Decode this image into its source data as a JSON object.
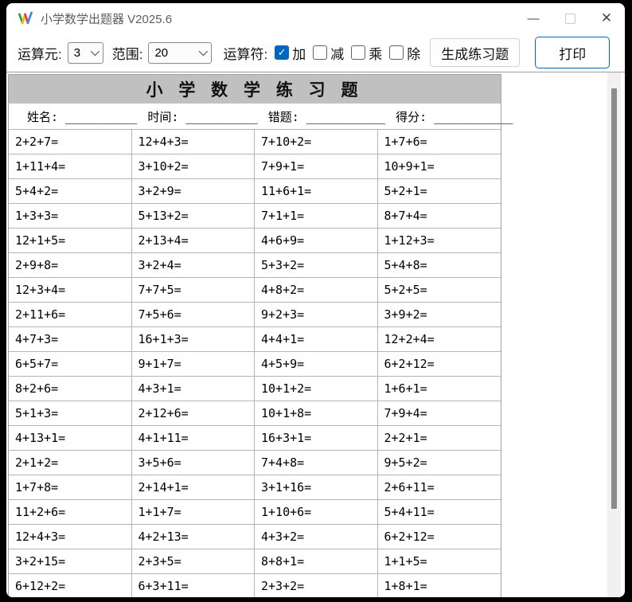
{
  "window": {
    "title": "小学数学出题器 V2025.6",
    "controls": {
      "minimize_glyph": "—",
      "close_glyph": "✕"
    }
  },
  "toolbar": {
    "operand_label": "运算元:",
    "operand_value": "3",
    "range_label": "范围:",
    "range_value": "20",
    "operators_label": "运算符:",
    "operators": [
      {
        "label": "加",
        "checked": true
      },
      {
        "label": "减",
        "checked": false
      },
      {
        "label": "乘",
        "checked": false
      },
      {
        "label": "除",
        "checked": false
      }
    ],
    "generate_button": "生成练习题",
    "print_button": "打印"
  },
  "sheet": {
    "title": "小 学 数 学 练 习 题",
    "fields": [
      {
        "label": "姓名:",
        "blank": " __________"
      },
      {
        "label": "时间:",
        "blank": " __________"
      },
      {
        "label": "错题:",
        "blank": " ___________"
      },
      {
        "label": "得分:",
        "blank": " ___________"
      }
    ]
  },
  "problems": {
    "columns": 4,
    "rows": [
      [
        "2+2+7=",
        "12+4+3=",
        "7+10+2=",
        "1+7+6="
      ],
      [
        "1+11+4=",
        "3+10+2=",
        "7+9+1=",
        "10+9+1="
      ],
      [
        "5+4+2=",
        "3+2+9=",
        "11+6+1=",
        "5+2+1="
      ],
      [
        "1+3+3=",
        "5+13+2=",
        "7+1+1=",
        "8+7+4="
      ],
      [
        "12+1+5=",
        "2+13+4=",
        "4+6+9=",
        "1+12+3="
      ],
      [
        "2+9+8=",
        "3+2+4=",
        "5+3+2=",
        "5+4+8="
      ],
      [
        "12+3+4=",
        "7+7+5=",
        "4+8+2=",
        "5+2+5="
      ],
      [
        "2+11+6=",
        "7+5+6=",
        "9+2+3=",
        "3+9+2="
      ],
      [
        "4+7+3=",
        "16+1+3=",
        "4+4+1=",
        "12+2+4="
      ],
      [
        "6+5+7=",
        "9+1+7=",
        "4+5+9=",
        "6+2+12="
      ],
      [
        "8+2+6=",
        "4+3+1=",
        "10+1+2=",
        "1+6+1="
      ],
      [
        "5+1+3=",
        "2+12+6=",
        "10+1+8=",
        "7+9+4="
      ],
      [
        "4+13+1=",
        "4+1+11=",
        "16+3+1=",
        "2+2+1="
      ],
      [
        "2+1+2=",
        "3+5+6=",
        "7+4+8=",
        "9+5+2="
      ],
      [
        "1+7+8=",
        "2+14+1=",
        "3+1+16=",
        "2+6+11="
      ],
      [
        "11+2+6=",
        "1+1+7=",
        "1+10+6=",
        "5+4+11="
      ],
      [
        "12+4+3=",
        "4+2+13=",
        "4+3+2=",
        "6+2+12="
      ],
      [
        "3+2+15=",
        "2+3+5=",
        "8+8+1=",
        "1+1+5="
      ],
      [
        "6+12+2=",
        "6+3+11=",
        "2+3+2=",
        "1+8+1="
      ]
    ]
  },
  "colors": {
    "accent": "#0067c0",
    "sheet_header_bg": "#c0c0c0",
    "grid_line": "#b5b5b5",
    "scrollbar_thumb": "#8b8b8b"
  }
}
